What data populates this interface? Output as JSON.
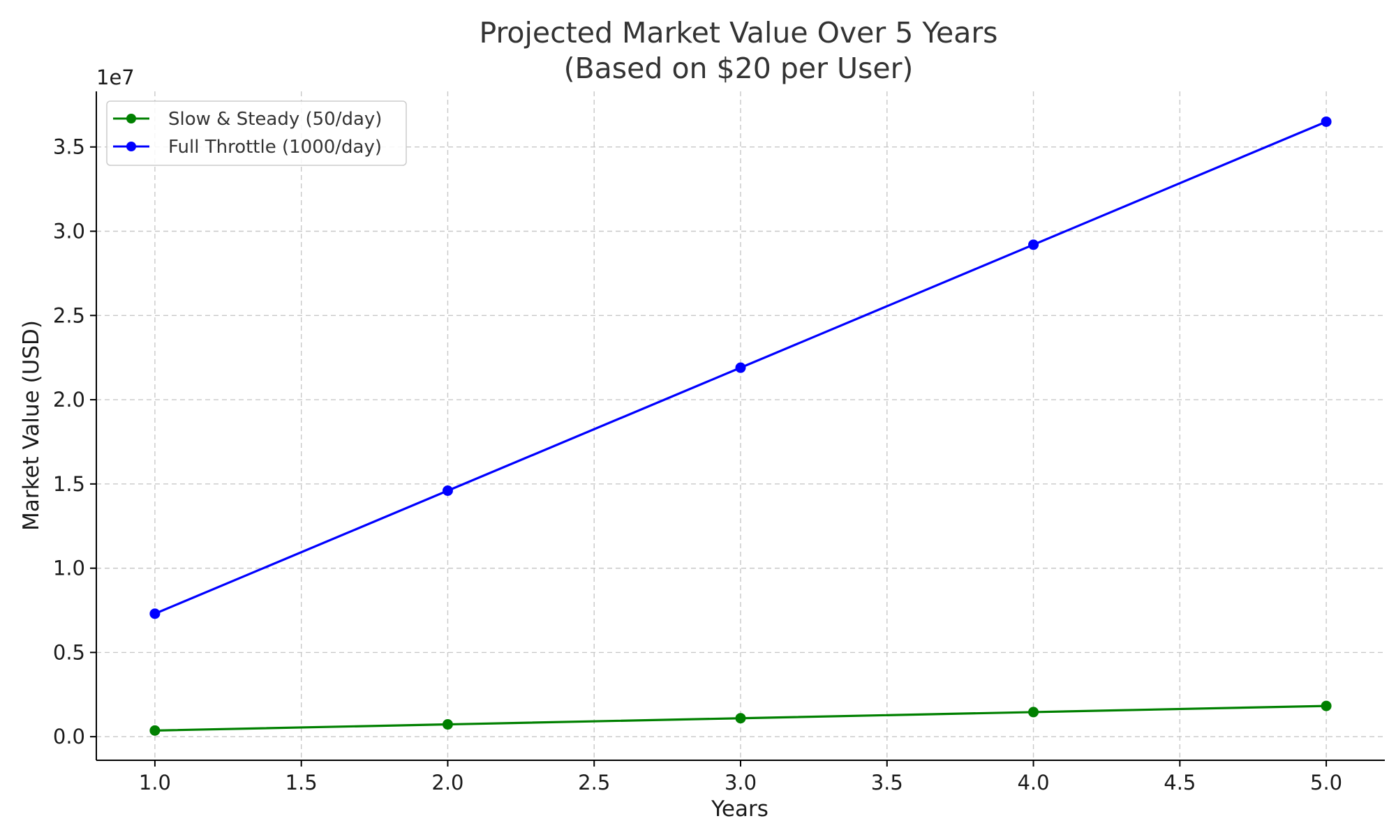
{
  "chart_data": {
    "type": "line",
    "title": "Projected Market Value Over 5 Years",
    "subtitle": "(Based on $20 per User)",
    "xlabel": "Years",
    "ylabel": "Market Value (USD)",
    "offset_label": "1e7",
    "x": [
      1.0,
      2.0,
      3.0,
      4.0,
      5.0
    ],
    "xlim": [
      0.8,
      5.2
    ],
    "ylim": [
      -1.4,
      38.3
    ],
    "xticks": [
      1.0,
      1.5,
      2.0,
      2.5,
      3.0,
      3.5,
      4.0,
      4.5,
      5.0
    ],
    "xtick_labels": [
      "1.0",
      "1.5",
      "2.0",
      "2.5",
      "3.0",
      "3.5",
      "4.0",
      "4.5",
      "5.0"
    ],
    "yticks": [
      0,
      5,
      10,
      15,
      20,
      25,
      30,
      35
    ],
    "ytick_labels": [
      "0.0",
      "0.5",
      "1.0",
      "1.5",
      "2.0",
      "2.5",
      "3.0",
      "3.5"
    ],
    "y_scale_note": "y values in units of 1e6 USD (axis shows 1e7 multiplier)",
    "grid": true,
    "legend_position": "top-left",
    "series": [
      {
        "name": "Slow & Steady (50/day)",
        "color": "#008000",
        "values": [
          0.365,
          0.73,
          1.095,
          1.46,
          1.825
        ]
      },
      {
        "name": "Full Throttle (1000/day)",
        "color": "#0000ff",
        "values": [
          7.3,
          14.6,
          21.9,
          29.2,
          36.5
        ]
      }
    ]
  }
}
